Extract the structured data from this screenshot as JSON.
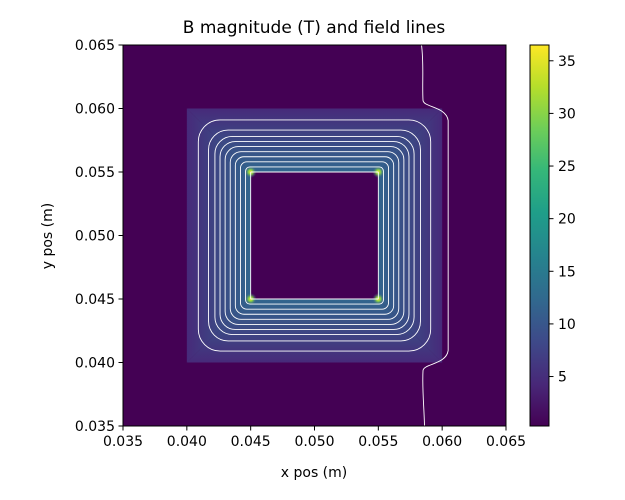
{
  "chart_data": {
    "type": "heatmap",
    "title": "B magnitude (T) and field lines",
    "xlabel": "x pos (m)",
    "ylabel": "y pos (m)",
    "xlim": [
      0.035,
      0.065
    ],
    "ylim": [
      0.035,
      0.065
    ],
    "x_ticks": [
      "0.035",
      "0.040",
      "0.045",
      "0.050",
      "0.055",
      "0.060",
      "0.065"
    ],
    "y_ticks": [
      "0.035",
      "0.040",
      "0.045",
      "0.050",
      "0.055",
      "0.060",
      "0.065"
    ],
    "colormap": "viridis",
    "colorbar": {
      "range": [
        0.3,
        36.5
      ],
      "ticks": [
        "5",
        "10",
        "15",
        "20",
        "25",
        "30",
        "35"
      ]
    },
    "regions": [
      {
        "name": "background",
        "x": [
          0.035,
          0.065
        ],
        "y": [
          0.035,
          0.065
        ],
        "B": 0.3
      },
      {
        "name": "core",
        "x": [
          0.04,
          0.06
        ],
        "y": [
          0.04,
          0.06
        ],
        "B_outer": 1.5,
        "B_inner": 13
      },
      {
        "name": "window",
        "x": [
          0.045,
          0.055
        ],
        "y": [
          0.045,
          0.055
        ],
        "B": 0.3
      }
    ],
    "corner_hotspots": [
      {
        "x": 0.045,
        "y": 0.045,
        "B": 36
      },
      {
        "x": 0.055,
        "y": 0.045,
        "B": 36
      },
      {
        "x": 0.045,
        "y": 0.055,
        "B": 36
      },
      {
        "x": 0.055,
        "y": 0.055,
        "B": 36
      }
    ],
    "field_lines": {
      "color": "#ffffff",
      "closed_loop_half_sizes": [
        0.005,
        0.0054,
        0.0058,
        0.0062,
        0.0066,
        0.007,
        0.0074,
        0.0078,
        0.0083,
        0.0091
      ],
      "center": [
        0.05,
        0.05
      ],
      "outer_line_x": 0.0585
    },
    "grid": false,
    "legend": "none"
  }
}
